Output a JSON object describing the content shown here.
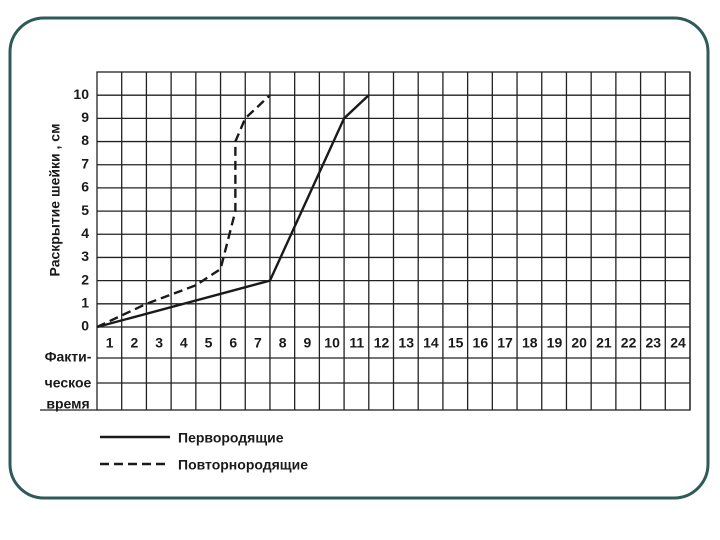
{
  "chart_data": {
    "type": "line",
    "y_label": "Раскрытие шейки ,  см",
    "time_row_label": [
      "Факти-",
      "ческое",
      "время"
    ],
    "series": [
      {
        "name": "Первородящие",
        "color": "#1a1a1a",
        "dash": "solid",
        "x": [
          0,
          7,
          10,
          11
        ],
        "values": [
          0,
          2,
          9,
          10
        ]
      },
      {
        "name": "Повторнородящие",
        "color": "#1a1a1a",
        "dash": "dashed",
        "x": [
          0,
          2,
          4,
          5,
          5.6,
          5.6,
          6,
          7
        ],
        "values": [
          0,
          1,
          1.8,
          2.5,
          5,
          8,
          9,
          10
        ]
      }
    ],
    "xlim": [
      0,
      24
    ],
    "xticks": [
      1,
      2,
      3,
      4,
      5,
      6,
      7,
      8,
      9,
      10,
      11,
      12,
      13,
      14,
      15,
      16,
      17,
      18,
      19,
      20,
      21,
      22,
      23,
      24
    ],
    "ylim": [
      0,
      11
    ],
    "yticks": [
      0,
      1,
      2,
      3,
      4,
      5,
      6,
      7,
      8,
      9,
      10
    ],
    "grid": true
  }
}
